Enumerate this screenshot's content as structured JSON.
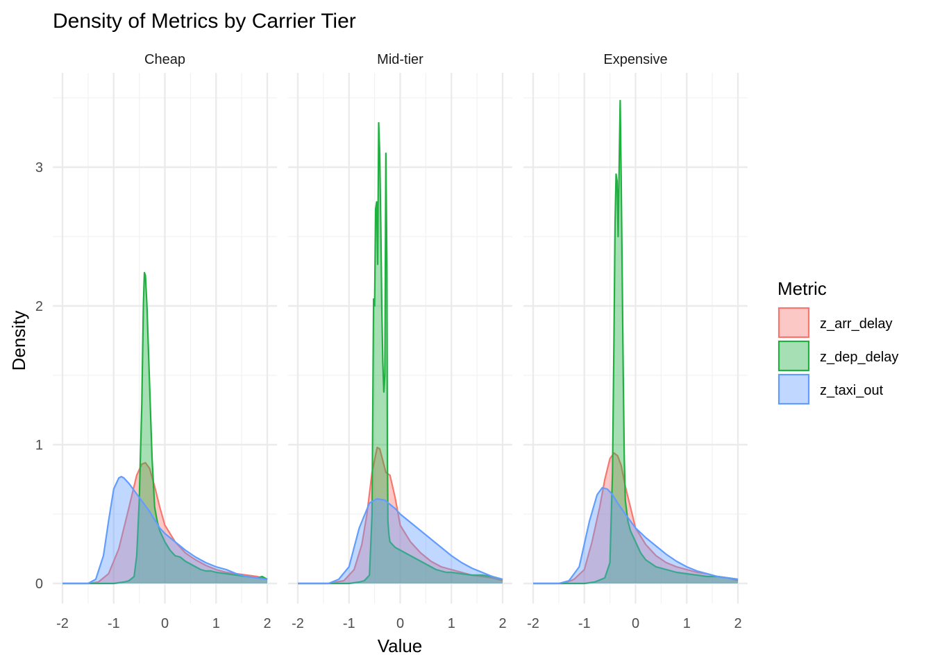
{
  "chart_data": {
    "type": "area",
    "title": "Density of Metrics by Carrier Tier",
    "xlabel": "Value",
    "ylabel": "Density",
    "xlim": [
      -2,
      2
    ],
    "ylim": [
      0,
      3.5
    ],
    "x_ticks": [
      -2,
      -1,
      0,
      1,
      2
    ],
    "y_ticks": [
      0,
      1,
      2,
      3
    ],
    "grid": true,
    "legend": {
      "title": "Metric",
      "placement": "right",
      "entries": [
        "z_arr_delay",
        "z_dep_delay",
        "z_taxi_out"
      ]
    },
    "colors": {
      "z_arr_delay": "#F8766D",
      "z_dep_delay": "#1FB040",
      "z_taxi_out": "#619CFF"
    },
    "panels": [
      {
        "label": "Cheap",
        "series": [
          {
            "name": "z_arr_delay",
            "x": [
              -2,
              -1.5,
              -1.3,
              -1.1,
              -0.9,
              -0.7,
              -0.55,
              -0.45,
              -0.38,
              -0.3,
              -0.2,
              -0.1,
              0,
              0.2,
              0.4,
              0.6,
              0.8,
              1,
              1.2,
              1.4,
              1.6,
              1.8,
              2
            ],
            "y": [
              0,
              0,
              0.01,
              0.07,
              0.25,
              0.55,
              0.78,
              0.86,
              0.87,
              0.83,
              0.7,
              0.55,
              0.42,
              0.3,
              0.22,
              0.17,
              0.13,
              0.1,
              0.08,
              0.07,
              0.06,
              0.05,
              0.03
            ]
          },
          {
            "name": "z_dep_delay",
            "x": [
              -2,
              -1.3,
              -1,
              -0.8,
              -0.7,
              -0.6,
              -0.55,
              -0.5,
              -0.45,
              -0.42,
              -0.4,
              -0.38,
              -0.35,
              -0.3,
              -0.25,
              -0.2,
              -0.15,
              -0.1,
              0,
              0.1,
              0.2,
              0.3,
              0.4,
              0.5,
              0.6,
              0.7,
              0.8,
              0.9,
              1,
              1.2,
              1.4,
              1.6,
              1.8,
              1.9,
              2
            ],
            "y": [
              0,
              0,
              0,
              0.01,
              0.02,
              0.05,
              0.2,
              0.6,
              1.3,
              2,
              2.24,
              2.22,
              2,
              1.45,
              0.9,
              0.55,
              0.45,
              0.38,
              0.3,
              0.24,
              0.2,
              0.19,
              0.16,
              0.14,
              0.12,
              0.1,
              0.09,
              0.09,
              0.08,
              0.07,
              0.06,
              0.05,
              0.04,
              0.05,
              0.03
            ]
          },
          {
            "name": "z_taxi_out",
            "x": [
              -2,
              -1.5,
              -1.35,
              -1.2,
              -1.1,
              -1,
              -0.9,
              -0.85,
              -0.8,
              -0.7,
              -0.6,
              -0.5,
              -0.4,
              -0.3,
              -0.2,
              -0.1,
              0,
              0.2,
              0.4,
              0.6,
              0.8,
              1,
              1.2,
              1.4,
              1.6,
              1.8,
              2
            ],
            "y": [
              0,
              0,
              0.03,
              0.2,
              0.45,
              0.68,
              0.76,
              0.77,
              0.76,
              0.72,
              0.67,
              0.62,
              0.57,
              0.52,
              0.46,
              0.4,
              0.36,
              0.3,
              0.24,
              0.19,
              0.15,
              0.12,
              0.1,
              0.07,
              0.05,
              0.04,
              0.03
            ]
          }
        ]
      },
      {
        "label": "Mid-tier",
        "series": [
          {
            "name": "z_arr_delay",
            "x": [
              -2,
              -1.4,
              -1.1,
              -0.9,
              -0.75,
              -0.65,
              -0.55,
              -0.45,
              -0.4,
              -0.35,
              -0.28,
              -0.2,
              -0.1,
              0,
              0.2,
              0.4,
              0.6,
              0.8,
              1,
              1.2,
              1.4,
              1.6,
              1.8,
              2
            ],
            "y": [
              0,
              0,
              0.02,
              0.1,
              0.28,
              0.5,
              0.8,
              0.98,
              0.97,
              0.9,
              0.8,
              0.78,
              0.62,
              0.42,
              0.3,
              0.22,
              0.16,
              0.12,
              0.1,
              0.08,
              0.06,
              0.05,
              0.04,
              0.02
            ]
          },
          {
            "name": "z_dep_delay",
            "x": [
              -2,
              -1,
              -0.8,
              -0.7,
              -0.6,
              -0.55,
              -0.52,
              -0.5,
              -0.48,
              -0.46,
              -0.44,
              -0.42,
              -0.4,
              -0.38,
              -0.36,
              -0.34,
              -0.32,
              -0.3,
              -0.28,
              -0.26,
              -0.25,
              -0.24,
              -0.22,
              -0.2,
              -0.15,
              -0.1,
              0,
              0.1,
              0.2,
              0.3,
              0.4,
              0.5,
              0.6,
              0.7,
              0.8,
              0.9,
              1,
              1.2,
              1.4,
              1.6,
              1.8,
              2
            ],
            "y": [
              0,
              0,
              0.01,
              0.02,
              0.06,
              0.5,
              2.05,
              2.0,
              2.7,
              2.75,
              2.3,
              3.32,
              3.1,
              2.6,
              2.0,
              1.6,
              1.38,
              1.5,
              3.1,
              2.3,
              0.9,
              0.45,
              0.35,
              0.3,
              0.28,
              0.26,
              0.24,
              0.22,
              0.2,
              0.18,
              0.16,
              0.14,
              0.12,
              0.1,
              0.09,
              0.08,
              0.08,
              0.07,
              0.06,
              0.06,
              0.05,
              0.03
            ]
          },
          {
            "name": "z_taxi_out",
            "x": [
              -2,
              -1.4,
              -1.2,
              -1,
              -0.8,
              -0.6,
              -0.45,
              -0.3,
              -0.2,
              -0.1,
              0,
              0.2,
              0.4,
              0.6,
              0.8,
              1,
              1.2,
              1.4,
              1.6,
              1.8,
              2
            ],
            "y": [
              0,
              0,
              0.03,
              0.12,
              0.4,
              0.58,
              0.61,
              0.6,
              0.57,
              0.54,
              0.5,
              0.44,
              0.38,
              0.32,
              0.26,
              0.2,
              0.15,
              0.11,
              0.08,
              0.05,
              0.03
            ]
          }
        ]
      },
      {
        "label": "Expensive",
        "series": [
          {
            "name": "z_arr_delay",
            "x": [
              -2,
              -1.4,
              -1.2,
              -1,
              -0.85,
              -0.7,
              -0.6,
              -0.5,
              -0.42,
              -0.35,
              -0.28,
              -0.2,
              -0.1,
              0,
              0.2,
              0.4,
              0.6,
              0.8,
              1,
              1.2,
              1.4,
              1.6,
              1.8,
              2
            ],
            "y": [
              0,
              0,
              0.03,
              0.1,
              0.3,
              0.55,
              0.75,
              0.9,
              0.94,
              0.92,
              0.85,
              0.7,
              0.55,
              0.4,
              0.28,
              0.2,
              0.15,
              0.12,
              0.1,
              0.08,
              0.07,
              0.05,
              0.04,
              0.02
            ]
          },
          {
            "name": "z_dep_delay",
            "x": [
              -2,
              -1,
              -0.8,
              -0.6,
              -0.5,
              -0.45,
              -0.42,
              -0.4,
              -0.38,
              -0.36,
              -0.34,
              -0.32,
              -0.3,
              -0.28,
              -0.26,
              -0.24,
              -0.22,
              -0.2,
              -0.15,
              -0.1,
              0,
              0.1,
              0.2,
              0.4,
              0.6,
              0.8,
              1,
              1.2,
              1.4,
              1.6,
              1.8,
              2
            ],
            "y": [
              0,
              0,
              0.01,
              0.04,
              0.15,
              0.8,
              1.8,
              2.6,
              2.95,
              2.9,
              2.5,
              3.0,
              3.48,
              2.9,
              2.2,
              1.5,
              0.9,
              0.6,
              0.45,
              0.38,
              0.3,
              0.22,
              0.17,
              0.12,
              0.1,
              0.08,
              0.07,
              0.06,
              0.05,
              0.05,
              0.04,
              0.03
            ]
          },
          {
            "name": "z_taxi_out",
            "x": [
              -2,
              -1.5,
              -1.3,
              -1.1,
              -0.9,
              -0.75,
              -0.65,
              -0.55,
              -0.45,
              -0.35,
              -0.2,
              0,
              0.2,
              0.4,
              0.6,
              0.8,
              1,
              1.2,
              1.4,
              1.6,
              1.8,
              2
            ],
            "y": [
              0,
              0,
              0.02,
              0.12,
              0.45,
              0.64,
              0.69,
              0.68,
              0.64,
              0.58,
              0.5,
              0.4,
              0.33,
              0.27,
              0.21,
              0.16,
              0.12,
              0.09,
              0.07,
              0.05,
              0.04,
              0.03
            ]
          }
        ]
      }
    ]
  }
}
